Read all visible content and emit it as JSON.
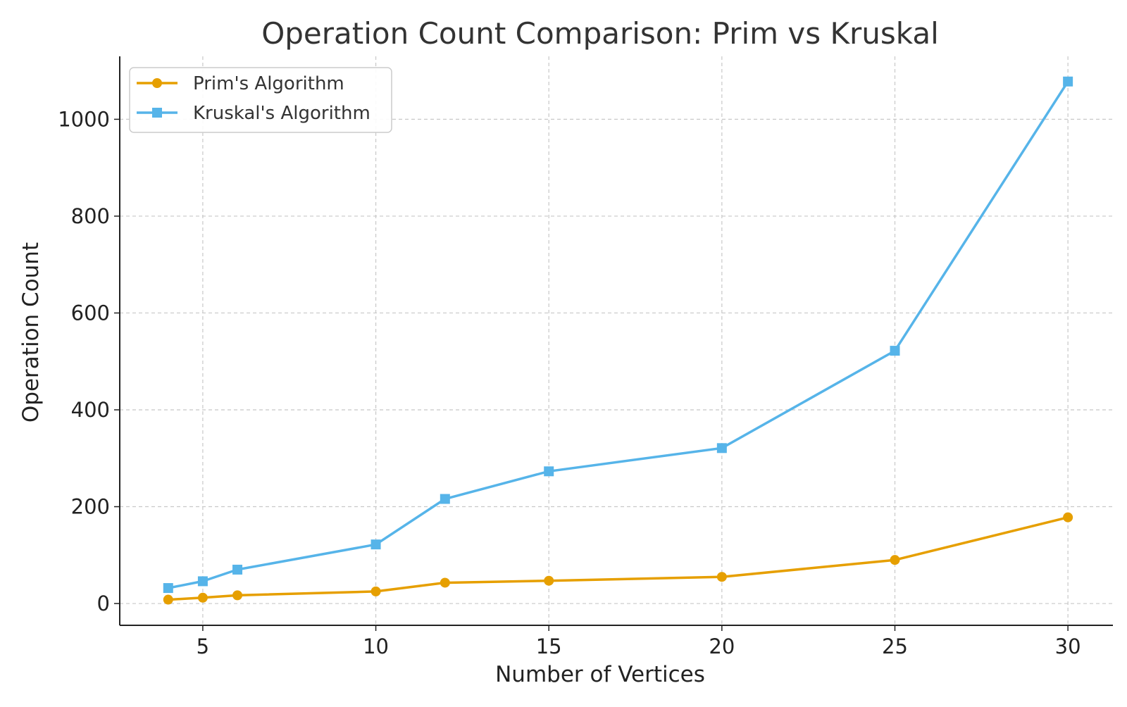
{
  "chart_data": {
    "type": "line",
    "title": "Operation Count Comparison: Prim vs Kruskal",
    "xlabel": "Number of Vertices",
    "ylabel": "Operation Count",
    "xlim": [
      2.6,
      31.3
    ],
    "ylim": [
      -45,
      1130
    ],
    "x": [
      4,
      5,
      6,
      10,
      12,
      15,
      20,
      25,
      30
    ],
    "x_ticks": [
      5,
      10,
      15,
      20,
      25,
      30
    ],
    "y_ticks": [
      0,
      200,
      400,
      600,
      800,
      1000
    ],
    "grid": true,
    "legend_position": "top-left",
    "series": [
      {
        "name": "Prim's Algorithm",
        "marker": "circle",
        "color": "#E69F00",
        "values": [
          8,
          12,
          17,
          25,
          43,
          47,
          55,
          90,
          178
        ]
      },
      {
        "name": "Kruskal's Algorithm",
        "marker": "square",
        "color": "#56B4E9",
        "values": [
          32,
          46,
          70,
          122,
          216,
          273,
          321,
          522,
          1078
        ]
      }
    ]
  }
}
